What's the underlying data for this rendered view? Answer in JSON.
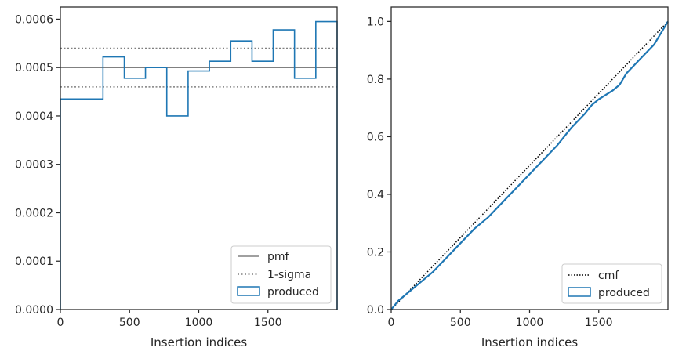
{
  "chart_data": [
    {
      "type": "histogram",
      "xlabel": "Insertion indices",
      "ylabel": "",
      "xlim": [
        0,
        2000
      ],
      "ylim": [
        0,
        0.000625
      ],
      "xticks": [
        0,
        500,
        1000,
        1500
      ],
      "yticks": [
        0.0,
        0.0001,
        0.0002,
        0.0003,
        0.0004,
        0.0005,
        0.0006
      ],
      "ytick_labels": [
        "0.0000",
        "0.0001",
        "0.0002",
        "0.0003",
        "0.0004",
        "0.0005",
        "0.0006"
      ],
      "bin_edges": [
        0,
        308,
        462,
        615,
        769,
        923,
        1077,
        1231,
        1385,
        1538,
        1692,
        1846,
        2000
      ],
      "values": [
        0.000435,
        0.000522,
        0.000478,
        0.0005,
        0.0004,
        0.000493,
        0.000513,
        0.000555,
        0.000513,
        0.000578,
        0.000478,
        0.000595
      ],
      "pmf": 0.0005,
      "sigma_band": [
        0.00046,
        0.00054
      ],
      "legend": {
        "location": "lower right",
        "items": [
          "pmf",
          "1-sigma",
          "produced"
        ]
      },
      "colors": {
        "produced": "#1f77b4",
        "pmf": "#808080",
        "sigma": "#808080"
      },
      "grid": false
    },
    {
      "type": "line",
      "xlabel": "Insertion indices",
      "ylabel": "",
      "xlim": [
        0,
        2000
      ],
      "ylim": [
        0,
        1.05
      ],
      "xticks": [
        0,
        500,
        1000,
        1500
      ],
      "yticks": [
        0.0,
        0.2,
        0.4,
        0.6,
        0.8,
        1.0
      ],
      "ytick_labels": [
        "0.0",
        "0.2",
        "0.4",
        "0.6",
        "0.8",
        "1.0"
      ],
      "series": [
        {
          "name": "cmf",
          "style": "dotted",
          "color": "#000000",
          "x": [
            0,
            2000
          ],
          "y": [
            0,
            1.0
          ]
        },
        {
          "name": "produced",
          "style": "solid",
          "color": "#1f77b4",
          "x": [
            0,
            50,
            100,
            150,
            200,
            300,
            400,
            500,
            600,
            700,
            800,
            900,
            1000,
            1100,
            1200,
            1300,
            1400,
            1450,
            1500,
            1600,
            1650,
            1700,
            1800,
            1900,
            2000
          ],
          "y": [
            0,
            0.03,
            0.05,
            0.07,
            0.09,
            0.13,
            0.18,
            0.23,
            0.28,
            0.32,
            0.37,
            0.42,
            0.47,
            0.52,
            0.57,
            0.63,
            0.68,
            0.71,
            0.73,
            0.76,
            0.78,
            0.82,
            0.87,
            0.92,
            1.0
          ]
        }
      ],
      "legend": {
        "location": "lower right",
        "items": [
          "cmf",
          "produced"
        ]
      },
      "grid": false
    }
  ]
}
